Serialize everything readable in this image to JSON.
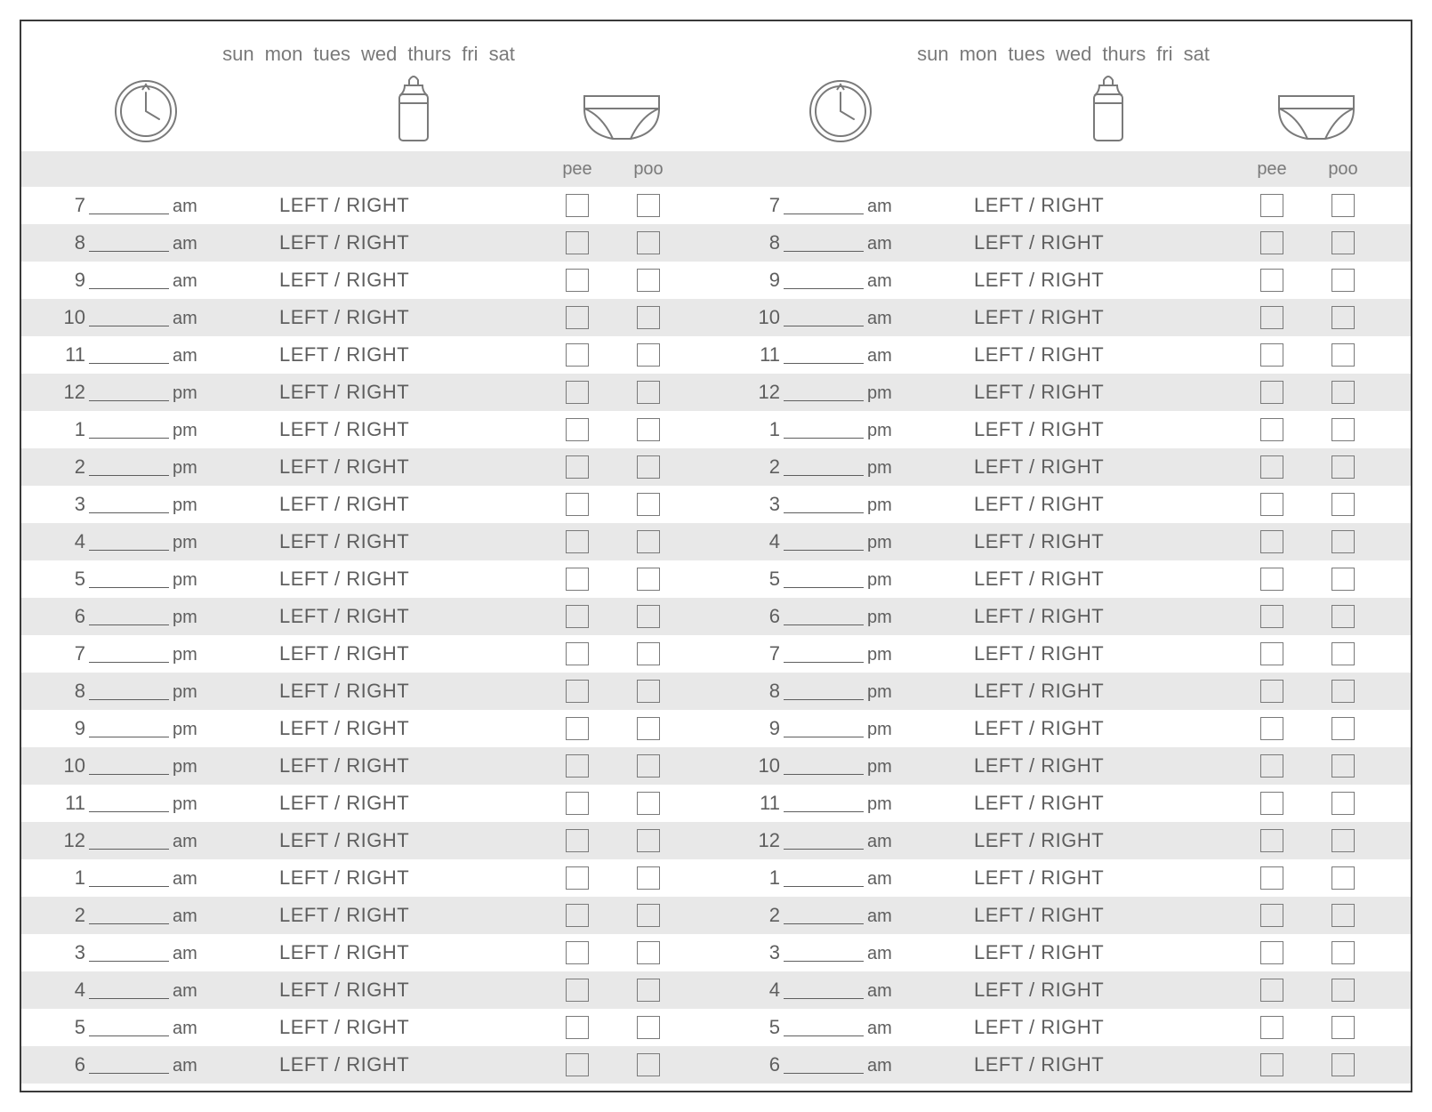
{
  "layout": {
    "columns": 2,
    "stripe_color": "#e8e8e8",
    "border_color": "#3a3a3a",
    "text_color": "#5e5e5e",
    "text_color_light": "#7a7a7a",
    "font_family": "Helvetica Neue"
  },
  "days": [
    "sun",
    "mon",
    "tues",
    "wed",
    "thurs",
    "fri",
    "sat"
  ],
  "subhead": {
    "pee": "pee",
    "poo": "poo"
  },
  "feed_label": "LEFT / RIGHT",
  "hours": [
    {
      "hour": "7",
      "ampm": "am"
    },
    {
      "hour": "8",
      "ampm": "am"
    },
    {
      "hour": "9",
      "ampm": "am"
    },
    {
      "hour": "10",
      "ampm": "am"
    },
    {
      "hour": "11",
      "ampm": "am"
    },
    {
      "hour": "12",
      "ampm": "pm"
    },
    {
      "hour": "1",
      "ampm": "pm"
    },
    {
      "hour": "2",
      "ampm": "pm"
    },
    {
      "hour": "3",
      "ampm": "pm"
    },
    {
      "hour": "4",
      "ampm": "pm"
    },
    {
      "hour": "5",
      "ampm": "pm"
    },
    {
      "hour": "6",
      "ampm": "pm"
    },
    {
      "hour": "7",
      "ampm": "pm"
    },
    {
      "hour": "8",
      "ampm": "pm"
    },
    {
      "hour": "9",
      "ampm": "pm"
    },
    {
      "hour": "10",
      "ampm": "pm"
    },
    {
      "hour": "11",
      "ampm": "pm"
    },
    {
      "hour": "12",
      "ampm": "am"
    },
    {
      "hour": "1",
      "ampm": "am"
    },
    {
      "hour": "2",
      "ampm": "am"
    },
    {
      "hour": "3",
      "ampm": "am"
    },
    {
      "hour": "4",
      "ampm": "am"
    },
    {
      "hour": "5",
      "ampm": "am"
    },
    {
      "hour": "6",
      "ampm": "am"
    }
  ],
  "icons": {
    "clock": "clock-icon",
    "bottle": "bottle-icon",
    "diaper": "diaper-icon"
  }
}
